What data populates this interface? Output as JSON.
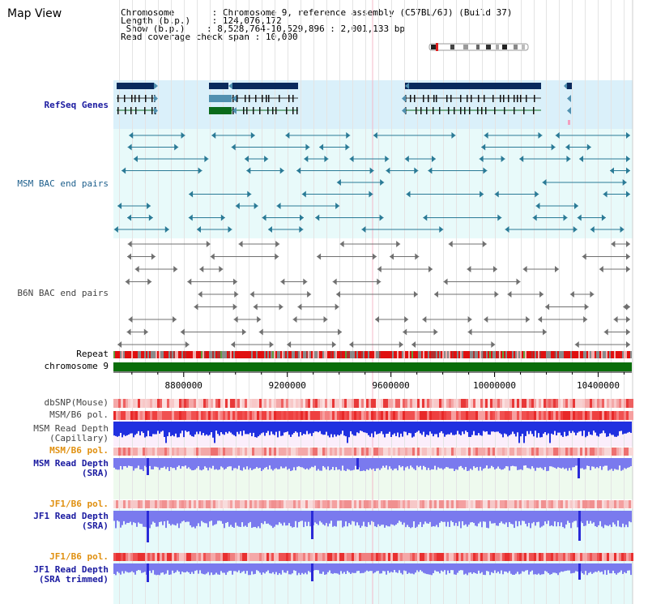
{
  "title": "Map View",
  "info": {
    "chromosome_label": "Chromosome",
    "chromosome_value": "Chromosome 9, reference assembly (C57BL/6J) (Build 37)",
    "length_label": "Length (b.p.)",
    "length_value": "124,076,172",
    "show_label": "Show (b.p.)",
    "show_value": "8,528,764-10,529,896 : 2,001,133 bp",
    "coverage_label": "Read coverage check span",
    "coverage_value": "10,000"
  },
  "tracks": {
    "refseq": "RefSeq Genes",
    "msm_bac": "MSM BAC end pairs",
    "b6n_bac": "B6N BAC end pairs",
    "repeat": "Repeat",
    "chromosome": "chromosome 9",
    "dbsnp": "dbSNP(Mouse)",
    "msm_b6_pol_1": "MSM/B6 pol.",
    "msm_depth_cap_1": "MSM Read Depth",
    "msm_depth_cap_2": "(Capillary)",
    "msm_b6_pol_2": "MSM/B6 pol.",
    "msm_depth_sra_1": "MSM Read Depth",
    "msm_depth_sra_2": "(SRA)",
    "jf1_b6_pol_1": "JF1/B6 pol.",
    "jf1_depth_sra_1": "JF1 Read Depth",
    "jf1_depth_sra_2": "(SRA)",
    "jf1_b6_pol_2": "JF1/B6 pol.",
    "jf1_depth_trim_1": "JF1 Read Depth",
    "jf1_depth_trim_2": "(SRA trimmed)"
  },
  "axis": {
    "ticks": [
      "8800000",
      "9200000",
      "9600000",
      "10000000",
      "10400000"
    ],
    "tick_positions_bp": [
      8800000,
      9200000,
      9600000,
      10000000,
      10400000
    ]
  },
  "colors": {
    "refseq_bg": "#daf0fa",
    "msm_bac_bg": "#e8fafa",
    "gene_navy": "#0a2a5c",
    "gene_teal": "#5090b0",
    "gene_green": "#0a6a1a",
    "bac_teal": "#2a7a96",
    "bac_grey": "#707070",
    "chromosome_bar": "#0a6e0a",
    "depth_blue": "#2030e0",
    "depth_sra": "#7a7aee"
  }
}
